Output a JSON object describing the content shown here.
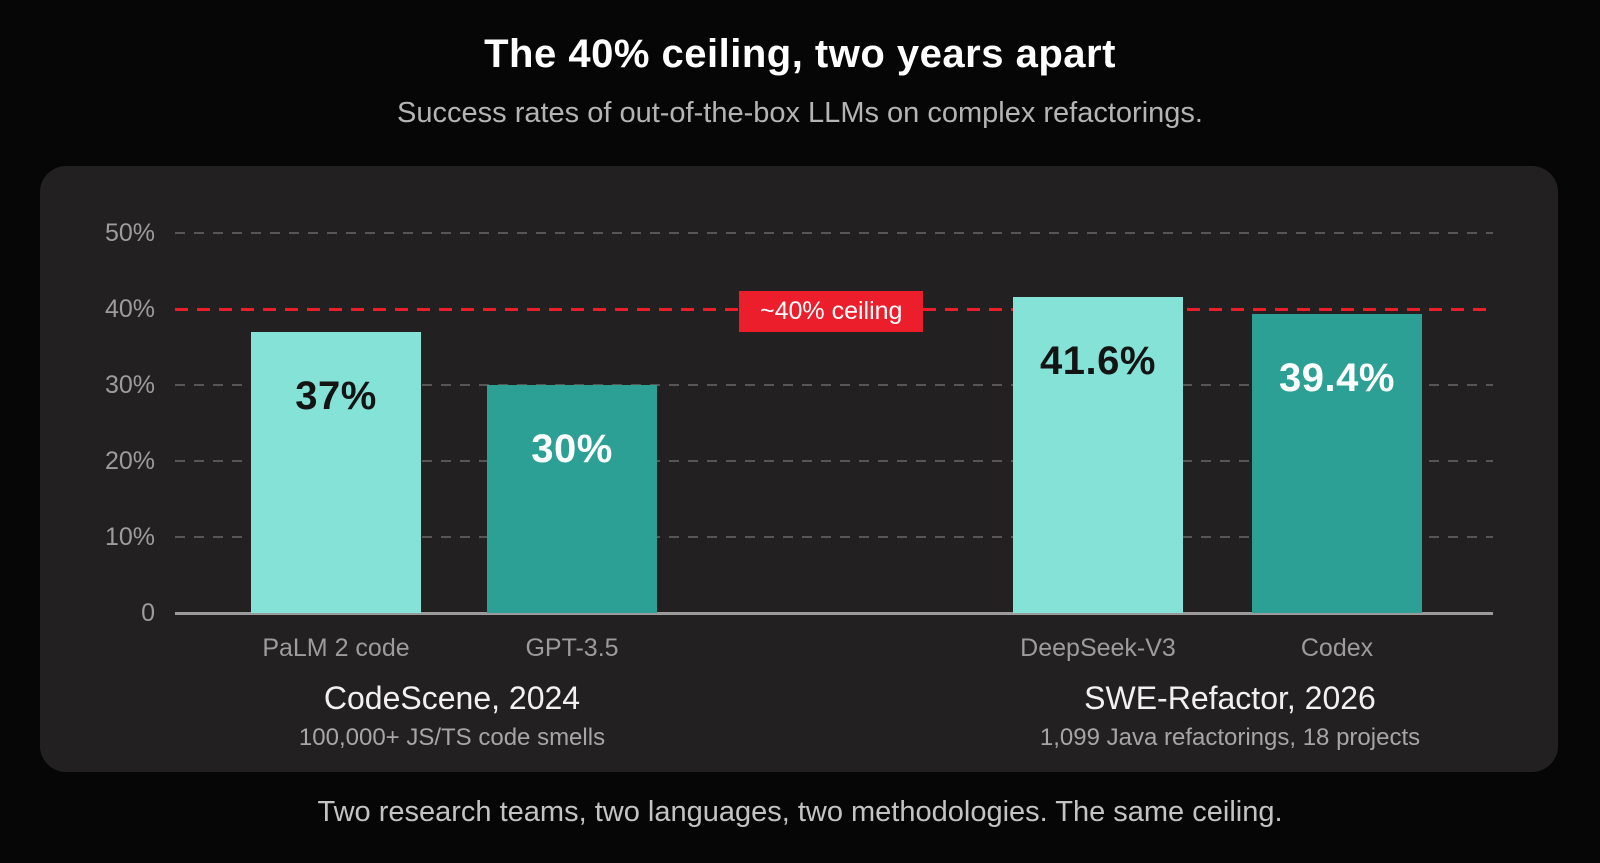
{
  "page": {
    "title": "The 40% ceiling, two years apart",
    "subtitle": "Success rates of out-of-the-box LLMs on complex refactorings.",
    "footer": "Two research teams, two languages, two methodologies. The same ceiling."
  },
  "chart_data": {
    "type": "bar",
    "title": "The 40% ceiling, two years apart",
    "subtitle": "Success rates of out-of-the-box LLMs on complex refactorings.",
    "xlabel": "",
    "ylabel": "",
    "ylim": [
      0,
      52
    ],
    "grid": true,
    "categories": [
      "PaLM 2 code",
      "GPT-3.5",
      "DeepSeek-V3",
      "Codex"
    ],
    "values": [
      37,
      30,
      41.6,
      39.4
    ],
    "yticks": [
      {
        "value": 0,
        "label": "0"
      },
      {
        "value": 10,
        "label": "10%"
      },
      {
        "value": 20,
        "label": "20%"
      },
      {
        "value": 30,
        "label": "30%"
      },
      {
        "value": 40,
        "label": "40%"
      },
      {
        "value": 50,
        "label": "50%"
      }
    ],
    "ceiling_line": {
      "value": 40,
      "label": "~40% ceiling"
    },
    "groups": [
      {
        "name": "CodeScene, 2024",
        "detail": "100,000+ JS/TS code smells",
        "bars": [
          {
            "label": "PaLM 2 code",
            "value": 37,
            "display": "37%",
            "variant": "light"
          },
          {
            "label": "GPT-3.5",
            "value": 30,
            "display": "30%",
            "variant": "dark"
          }
        ]
      },
      {
        "name": "SWE-Refactor, 2026",
        "detail": "1,099 Java refactorings, 18 projects",
        "bars": [
          {
            "label": "DeepSeek-V3",
            "value": 41.6,
            "display": "41.6%",
            "variant": "light"
          },
          {
            "label": "Codex",
            "value": 39.4,
            "display": "39.4%",
            "variant": "dark"
          }
        ]
      }
    ],
    "colors": {
      "bar_light": "#85e2d7",
      "bar_dark": "#2da095",
      "value_on_light": "#141414",
      "value_on_dark": "#ffffff",
      "ceiling_red": "#ec1e2b",
      "gridline": "#565656",
      "axis": "#9b9b9b",
      "tick_text": "#9c9c9c",
      "panel_bg": "#222021",
      "page_bg": "#060606"
    }
  }
}
